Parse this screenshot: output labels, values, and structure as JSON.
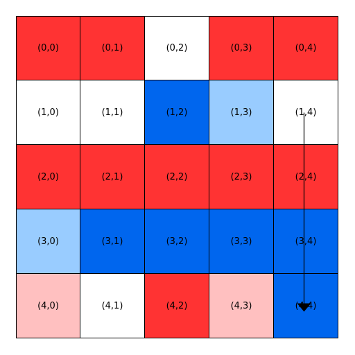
{
  "grid": {
    "rows": 5,
    "cols": 5,
    "cells": [
      [
        {
          "label": "(0,0)",
          "color": "#ff3333"
        },
        {
          "label": "(0,1)",
          "color": "#ff3333"
        },
        {
          "label": "(0,2)",
          "color": "#ffffff"
        },
        {
          "label": "(0,3)",
          "color": "#ff3333"
        },
        {
          "label": "(0,4)",
          "color": "#ff3333"
        }
      ],
      [
        {
          "label": "(1,0)",
          "color": "#ffffff"
        },
        {
          "label": "(1,1)",
          "color": "#ffffff"
        },
        {
          "label": "(1,2)",
          "color": "#0066ee"
        },
        {
          "label": "(1,3)",
          "color": "#99ccff"
        },
        {
          "label": "(1,4)",
          "color": "#ffffff"
        }
      ],
      [
        {
          "label": "(2,0)",
          "color": "#ff3333"
        },
        {
          "label": "(2,1)",
          "color": "#ff3333"
        },
        {
          "label": "(2,2)",
          "color": "#ff3333"
        },
        {
          "label": "(2,3)",
          "color": "#ff3333"
        },
        {
          "label": "(2,4)",
          "color": "#ff3333"
        }
      ],
      [
        {
          "label": "(3,0)",
          "color": "#99ccff"
        },
        {
          "label": "(3,1)",
          "color": "#0066ee"
        },
        {
          "label": "(3,2)",
          "color": "#0066ee"
        },
        {
          "label": "(3,3)",
          "color": "#0066ee"
        },
        {
          "label": "(3,4)",
          "color": "#0066ee"
        }
      ],
      [
        {
          "label": "(4,0)",
          "color": "#ffc0c0"
        },
        {
          "label": "(4,1)",
          "color": "#ffffff"
        },
        {
          "label": "(4,2)",
          "color": "#ff3333"
        },
        {
          "label": "(4,3)",
          "color": "#ffc0c0"
        },
        {
          "label": "(4,4)",
          "color": "#0066ee"
        }
      ]
    ]
  },
  "arrow": {
    "from": [
      1,
      4
    ],
    "to": [
      4,
      4
    ],
    "color": "#000000"
  }
}
